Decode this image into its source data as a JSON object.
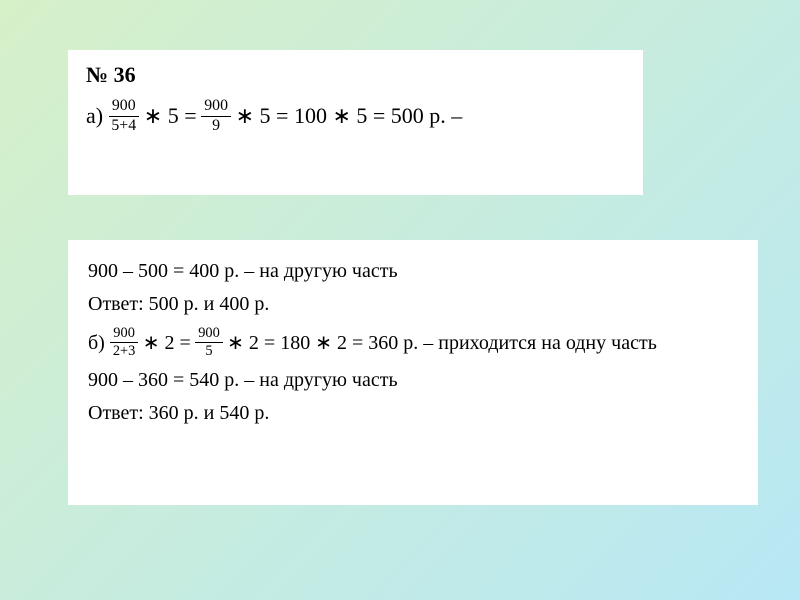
{
  "panel1": {
    "problem_number": "№ 36",
    "label_a": "а)",
    "frac_a1": {
      "num": "900",
      "den": "5+4"
    },
    "mult_a1": "∗ 5 =",
    "frac_a2": {
      "num": "900",
      "den": "9"
    },
    "rest_a": "∗ 5 = 100 ∗ 5 = 500 р. – "
  },
  "panel2": {
    "line1": "900 – 500 = 400 р. – на другую часть",
    "answer_a": "Ответ: 500 р. и 400 р.",
    "label_b": "б)",
    "frac_b1": {
      "num": "900",
      "den": "2+3"
    },
    "mult_b1": "∗ 2 =",
    "frac_b2": {
      "num": "900",
      "den": "5"
    },
    "rest_b": "∗ 2 = 180 ∗ 2 = 360 р. – приходится на одну часть",
    "line_b2": "900 – 360 = 540 р. – на другую часть",
    "answer_b": "Ответ: 360 р. и 540 р."
  },
  "colors": {
    "bg_gradient_start": "#d6f0c8",
    "bg_gradient_end": "#b8e8f5",
    "panel_bg": "#ffffff",
    "text": "#000000"
  }
}
